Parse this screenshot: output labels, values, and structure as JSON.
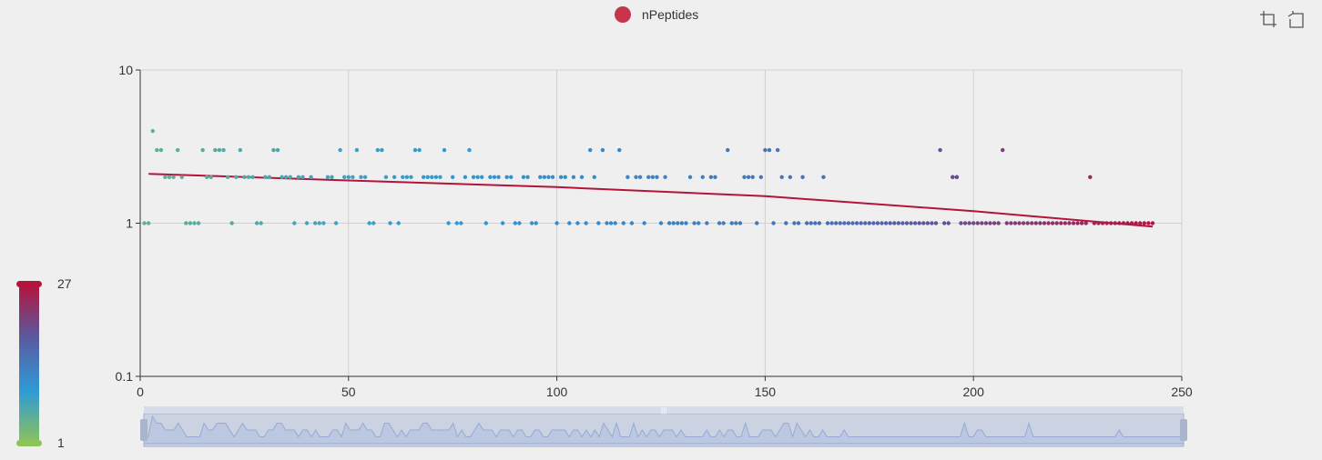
{
  "legend": {
    "label": "nPeptides",
    "color": "#c8344c"
  },
  "toolbox": {
    "zoom_icon": "data-zoom-icon",
    "restore_icon": "restore-icon"
  },
  "visual_map": {
    "min": 1,
    "max": 27,
    "min_label": "1",
    "max_label": "27",
    "colors": [
      "#8cc35a",
      "#2e9ad6",
      "#5a5aa0",
      "#b4143c"
    ]
  },
  "chart_data": {
    "type": "scatter",
    "series": [
      {
        "name": "nPeptides",
        "x": [],
        "y": []
      }
    ],
    "trend_line": {
      "x": [
        2,
        50,
        100,
        150,
        200,
        243
      ],
      "y": [
        2.1,
        1.9,
        1.72,
        1.5,
        1.2,
        0.95
      ],
      "color": "#b4143c"
    },
    "x_ticks": [
      "0",
      "50",
      "100",
      "150",
      "200",
      "250"
    ],
    "y_ticks": [
      "0.1",
      "1",
      "10"
    ],
    "xlim": [
      0,
      250
    ],
    "ylim": [
      0.1,
      10
    ],
    "y_scale": "log",
    "grid": true,
    "legend_position": "top-center"
  }
}
